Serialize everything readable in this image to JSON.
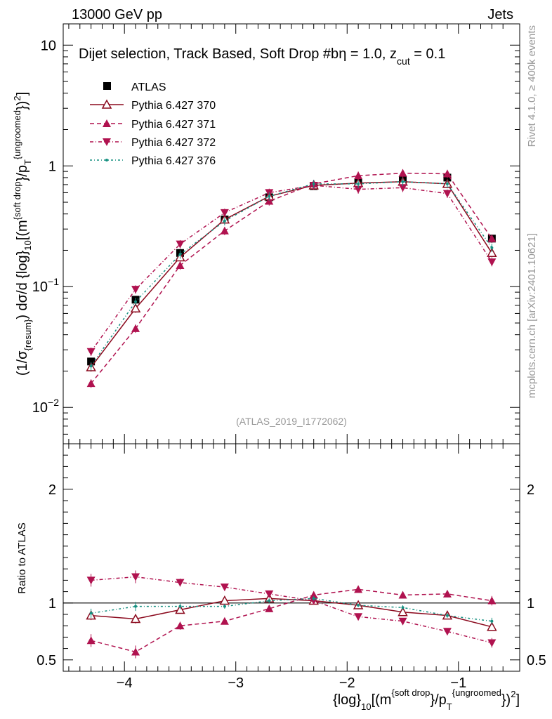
{
  "header": {
    "left": "13000 GeV pp",
    "right": "Jets"
  },
  "side_labels": {
    "rivet": "Rivet 4.1.0, ≥ 400k events",
    "mcplots": "mcplots.cern.ch [arXiv:2401.10621]"
  },
  "chart_data": {
    "type": "line",
    "title": "Dijet selection, Track Based, Soft Drop #beta = 1.0, z_cut = 0.1",
    "title_parts": {
      "main": "Dijet selection, Track Based, Soft Drop #b",
      "eta": "η = 1.0, z",
      "cut": "cut",
      "tail": " = 0.1"
    },
    "watermark": "(ATLAS_2019_I1772062)",
    "xlabel": "{log}_10[(m^{soft drop}/p_T^{ungroomed})^2]",
    "xlabel_parts": {
      "a": "{log}",
      "b": "10",
      "c": "[(m",
      "d": "{soft drop",
      "e": "}/p",
      "f": "T",
      "g": "{ungroomed",
      "h": "})",
      "i": "2",
      "j": "]"
    },
    "ylabel": "(1/σ_{resum}) dσ/d {log}_10[(m^{soft drop}/p_T^{ungroomed})^2]",
    "ylabel_parts": {
      "a": "(1/σ",
      "b": "{resum}",
      "c": ") dσ/d {log}",
      "d": "10",
      "e": "[(m",
      "f": "{soft drop",
      "g": "}/p",
      "h": "T",
      "i": "{ungroomed",
      "j": "})",
      "k": "2",
      "l": "]"
    },
    "xlim": [
      -4.55,
      -0.45
    ],
    "ylim": [
      0.005,
      15
    ],
    "yscale": "log",
    "x_ticks": [
      -4,
      -3,
      -2,
      -1
    ],
    "x_tick_labels": [
      "−4",
      "−3",
      "−2",
      "−1"
    ],
    "y_tick_labels": [
      {
        "value": 0.01,
        "base": "10",
        "exp": "−2"
      },
      {
        "value": 0.1,
        "base": "10",
        "exp": "−1"
      },
      {
        "value": 1,
        "base": "1",
        "exp": ""
      },
      {
        "value": 10,
        "base": "10",
        "exp": ""
      }
    ],
    "x": [
      -4.3,
      -3.9,
      -3.5,
      -3.1,
      -2.7,
      -2.3,
      -1.9,
      -1.5,
      -1.1,
      -0.7
    ],
    "atlas": {
      "name": "ATLAS",
      "values": [
        0.024,
        0.078,
        0.19,
        0.36,
        0.55,
        0.68,
        0.73,
        0.77,
        0.8,
        0.25
      ],
      "errors": [
        0.0015,
        0.004,
        0.008,
        0.012,
        0.015,
        0.015,
        0.015,
        0.016,
        0.018,
        0.008
      ]
    },
    "series": [
      {
        "name": "Pythia 6.427 370",
        "values": [
          0.0215,
          0.066,
          0.175,
          0.36,
          0.56,
          0.69,
          0.72,
          0.74,
          0.71,
          0.19
        ],
        "color": "#8b0a1e",
        "dash": "",
        "marker": "triangle-up-open"
      },
      {
        "name": "Pythia 6.427 371",
        "values": [
          0.0158,
          0.045,
          0.15,
          0.29,
          0.51,
          0.71,
          0.83,
          0.87,
          0.86,
          0.25
        ],
        "color": "#b0124f",
        "dash": "6,4",
        "marker": "triangle-up"
      },
      {
        "name": "Pythia 6.427 372",
        "values": [
          0.029,
          0.095,
          0.225,
          0.41,
          0.6,
          0.69,
          0.64,
          0.66,
          0.59,
          0.16
        ],
        "color": "#b0124f",
        "dash": "5,3,1,3",
        "marker": "triangle-down"
      },
      {
        "name": "Pythia 6.427 376",
        "values": [
          0.022,
          0.075,
          0.185,
          0.35,
          0.56,
          0.71,
          0.71,
          0.74,
          0.71,
          0.21
        ],
        "color": "#159080",
        "dash": "3,3,1,3",
        "marker": "dot"
      }
    ],
    "ratio": {
      "ylabel": "Ratio to ATLAS",
      "ylim": [
        0.4,
        2.4
      ],
      "y_ticks": [
        0.5,
        1,
        2
      ],
      "y_tick_labels": [
        "0.5",
        "1",
        "2"
      ],
      "band_errors": [
        0.07,
        0.05,
        0.04,
        0.035,
        0.03,
        0.02,
        0.02,
        0.02,
        0.02,
        0.03
      ],
      "series_ratios": [
        [
          0.89,
          0.86,
          0.94,
          1.02,
          1.04,
          1.02,
          0.98,
          0.92,
          0.89,
          0.79
        ],
        [
          0.67,
          0.57,
          0.8,
          0.84,
          0.95,
          1.07,
          1.12,
          1.07,
          1.08,
          1.02
        ],
        [
          1.2,
          1.23,
          1.18,
          1.14,
          1.08,
          1.02,
          0.88,
          0.84,
          0.75,
          0.65
        ],
        [
          0.91,
          0.97,
          0.97,
          0.97,
          1.02,
          1.04,
          0.98,
          0.96,
          0.89,
          0.84
        ]
      ],
      "series_errors": [
        0.04,
        0.04,
        0.025,
        0.02,
        0.02,
        0.02,
        0.015,
        0.02,
        0.02,
        0.03
      ]
    }
  }
}
